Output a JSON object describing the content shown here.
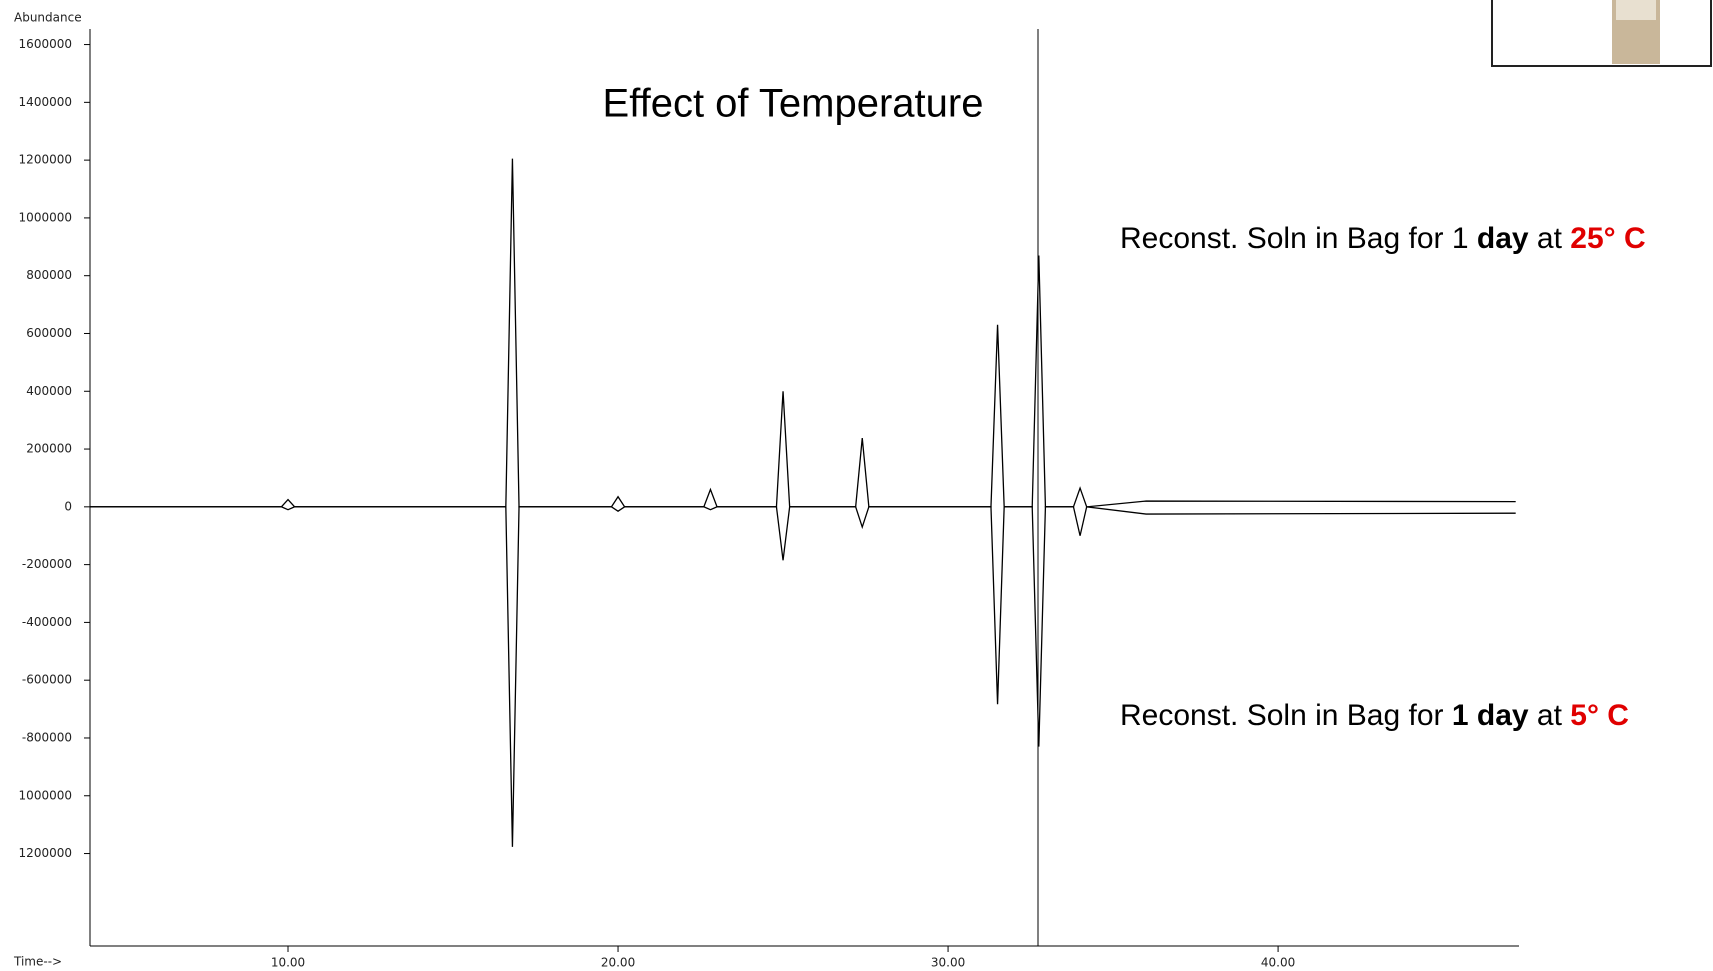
{
  "chart_data": {
    "type": "line",
    "title": "Effect of Temperature",
    "y_label": "Abundance",
    "x_label": "Time-->",
    "x": [
      4,
      9.8,
      10.0,
      10.2,
      16.6,
      16.8,
      17.0,
      19.8,
      20.0,
      20.2,
      22.6,
      22.8,
      23.0,
      24.8,
      25.0,
      25.2,
      27.2,
      27.4,
      27.6,
      31.3,
      31.5,
      31.7,
      32.55,
      32.75,
      32.95,
      33.8,
      34.0,
      34.2,
      36,
      47.2
    ],
    "series": [
      {
        "name": "Reconst. Soln in Bag for 1 day at 25° C",
        "color": "#000000",
        "values": [
          0,
          0,
          25000,
          0,
          0,
          1205000,
          0,
          0,
          35000,
          0,
          0,
          60000,
          0,
          0,
          400000,
          0,
          0,
          238000,
          0,
          0,
          630000,
          0,
          0,
          870000,
          0,
          0,
          65000,
          0,
          20000,
          18000
        ]
      },
      {
        "name": "Reconst. Soln in Bag for 1 day at 5° C",
        "color": "#000000",
        "values": [
          0,
          0,
          -10000,
          0,
          0,
          -1177000,
          0,
          0,
          -15000,
          0,
          0,
          -10000,
          0,
          0,
          -185000,
          0,
          0,
          -70000,
          0,
          0,
          -683000,
          0,
          0,
          -830000,
          0,
          0,
          -100000,
          0,
          -25000,
          -22000
        ]
      }
    ],
    "annotations": [
      [
        "Reconst. Soln in Bag for 1 ",
        "day",
        " at ",
        "25° C"
      ],
      [
        "Reconst. Soln in Bag for ",
        "1 day",
        " at ",
        "5° C"
      ]
    ],
    "xlim": [
      4,
      47.3
    ],
    "ylim": [
      -1520000,
      1640000
    ],
    "xticks": [
      {
        "value": 10,
        "label": "10.00"
      },
      {
        "value": 20,
        "label": "20.00"
      },
      {
        "value": 30,
        "label": "30.00"
      },
      {
        "value": 40,
        "label": "40.00"
      }
    ],
    "yticks": [
      1600000,
      1400000,
      1200000,
      1000000,
      800000,
      600000,
      400000,
      200000,
      0,
      -200000,
      -400000,
      -600000,
      -800000,
      {
        "value": -1000000,
        "label": "1000000"
      },
      {
        "value": -1200000,
        "label": "1200000"
      }
    ]
  }
}
